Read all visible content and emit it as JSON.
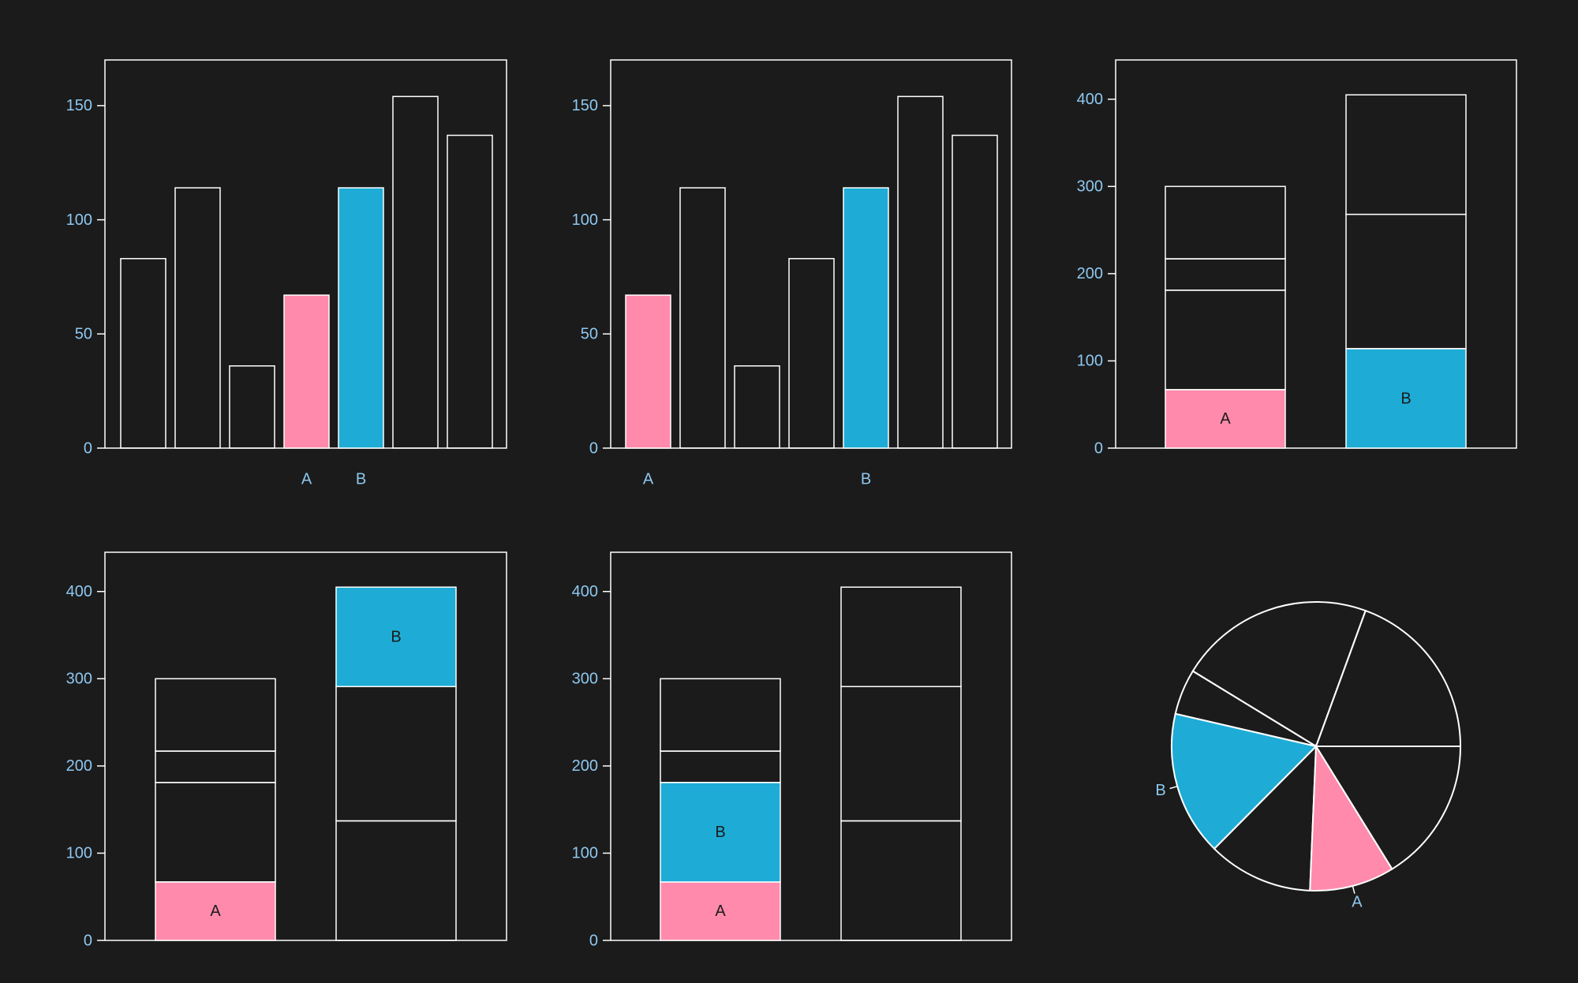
{
  "colors": {
    "background": "#1b1b1b",
    "outline": "#ffffff",
    "tick_text": "#8ec8f0",
    "highlight_a": "#ff8aac",
    "highlight_b": "#1eacd6"
  },
  "chart_data": [
    {
      "type": "bar",
      "values": [
        83,
        114,
        36,
        67,
        114,
        154,
        137
      ],
      "categories": [
        "",
        "",
        "",
        "A",
        "B",
        "",
        ""
      ],
      "highlight": {
        "A": 3,
        "B": 4
      },
      "ylim": [
        0,
        170
      ],
      "yticks": [
        0,
        50,
        100,
        150
      ],
      "title": "",
      "xlabel": "",
      "ylabel": ""
    },
    {
      "type": "bar",
      "values": [
        67,
        114,
        36,
        83,
        114,
        154,
        137
      ],
      "categories": [
        "A",
        "",
        "",
        "",
        "B",
        "",
        ""
      ],
      "highlight": {
        "A": 0,
        "B": 4
      },
      "ylim": [
        0,
        170
      ],
      "yticks": [
        0,
        50,
        100,
        150
      ],
      "title": "",
      "xlabel": "",
      "ylabel": ""
    },
    {
      "type": "bar",
      "subtype": "stacked",
      "stacks": [
        [
          67,
          114,
          36,
          83
        ],
        [
          114,
          154,
          137
        ]
      ],
      "highlight": {
        "A": [
          0,
          0
        ],
        "B": [
          1,
          0
        ]
      },
      "ylim": [
        0,
        445
      ],
      "yticks": [
        0,
        100,
        200,
        300,
        400
      ],
      "title": "",
      "xlabel": "",
      "ylabel": ""
    },
    {
      "type": "bar",
      "subtype": "stacked",
      "stacks": [
        [
          67,
          114,
          36,
          83
        ],
        [
          137,
          154,
          114
        ]
      ],
      "highlight": {
        "A": [
          0,
          0
        ],
        "B": [
          1,
          2
        ]
      },
      "ylim": [
        0,
        445
      ],
      "yticks": [
        0,
        100,
        200,
        300,
        400
      ],
      "title": "",
      "xlabel": "",
      "ylabel": ""
    },
    {
      "type": "bar",
      "subtype": "stacked",
      "stacks": [
        [
          67,
          114,
          36,
          83
        ],
        [
          137,
          154,
          114
        ]
      ],
      "highlight": {
        "A": [
          0,
          0
        ],
        "B": [
          0,
          1
        ]
      },
      "ylim": [
        0,
        445
      ],
      "yticks": [
        0,
        100,
        200,
        300,
        400
      ],
      "title": "",
      "xlabel": "",
      "ylabel": ""
    },
    {
      "type": "pie",
      "values": [
        137,
        154,
        36,
        114,
        83,
        67,
        114
      ],
      "start_angle_deg": 0,
      "direction": "counterclockwise",
      "labels": {
        "A": 5,
        "B": 3
      },
      "title": ""
    }
  ]
}
